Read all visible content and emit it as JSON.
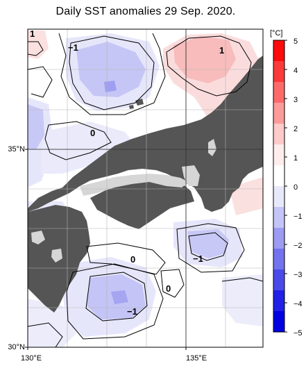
{
  "title": "Daily SST anomalies 29 Sep. 2020.",
  "map": {
    "lat_labels": [
      {
        "id": "35n",
        "text": "35°N"
      },
      {
        "id": "30n",
        "text": "30°N"
      }
    ],
    "lon_labels": [
      {
        "id": "130e",
        "text": "130°E"
      },
      {
        "id": "135e",
        "text": "135°E"
      }
    ],
    "contour_labels": [
      {
        "id": "pos1-tl",
        "text": "1"
      },
      {
        "id": "neg1-top",
        "text": "−1"
      },
      {
        "id": "pos1-right",
        "text": "1"
      },
      {
        "id": "zero-mid",
        "text": "0"
      },
      {
        "id": "zero-south",
        "text": "0"
      },
      {
        "id": "neg1-east",
        "text": "−1"
      },
      {
        "id": "zero-south2",
        "text": "0"
      },
      {
        "id": "neg1-south",
        "text": "−1"
      }
    ],
    "colors": {
      "land": "#555555",
      "lake": "#d6d6d6",
      "grid": "#b3b3b3"
    }
  },
  "colorbar": {
    "unit": "[°C]",
    "ticks": [
      "5",
      "4",
      "3",
      "2",
      "1",
      "0",
      "−1",
      "−2",
      "−3",
      "−4",
      "−5"
    ],
    "colors": [
      "#fb0b0b",
      "#fb3a3a",
      "#fc6a6a",
      "#fd9a9a",
      "#fecaca",
      "#ffeded",
      "#ffffff",
      "#e8e8fb",
      "#c4c4f7",
      "#9c9cf3",
      "#7373ef",
      "#4a4aeb",
      "#2020e6",
      "#0000e0"
    ]
  }
}
